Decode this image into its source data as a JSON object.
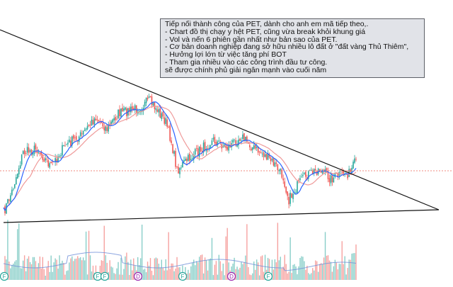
{
  "chart_data": {
    "type": "candlestick",
    "description_note": {
      "lines": [
        "Tiếp nối thành công của PET, dành cho anh em mã tiếp theo,.",
        "- Chart đồ thị chạy y hệt PET, cũng vừa break khỏi khung giá",
        "- Vol và nến 6 phiên gần nhất như bản sao của PET.",
        "- Cơ bản doanh nghiệp đang sở hữu nhiều lô đất ở \"đất vàng Thủ Thiêm\",",
        "- Hưởng lợi lớn từ việc tăng phí BOT",
        "- Tham gia nhiều vào các công trình đầu tư công.",
        "sẽ được chính phủ giải ngân mạnh vào cuối năm"
      ]
    },
    "event_markers": [
      "F",
      "F",
      "F",
      "D",
      "F",
      "D",
      "F"
    ],
    "trendlines": [
      "descending-resistance",
      "ascending-support"
    ],
    "moving_averages": [
      "fast-ma",
      "slow-ma"
    ],
    "reference_line": "last-price dashed",
    "colors": {
      "up": "#26a69a",
      "down": "#ef5350",
      "fast_ma": "#2962ff",
      "slow_ma": "#ef9a9a",
      "trendline": "#111111",
      "price_line": "#f28b82",
      "volume_ma": "#6f8fd8",
      "marker_green": "#26a69a",
      "marker_purple": "#9c27b0"
    },
    "volume_shown": true,
    "grid": false,
    "axes_visible": false
  }
}
